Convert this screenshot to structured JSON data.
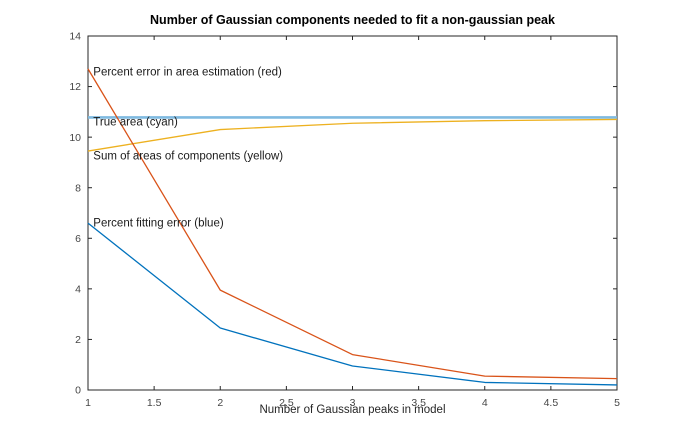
{
  "chart_data": {
    "type": "line",
    "title": "Number of Gaussian components needed to fit a non-gaussian peak",
    "xlabel": "Number of Gaussian peaks in model",
    "ylabel": "",
    "x": [
      1,
      2,
      3,
      4,
      5
    ],
    "series": [
      {
        "name": "true-area",
        "label": "True area (cyan)",
        "color": "#7FBAE0",
        "width": 2.6,
        "values": [
          10.78,
          10.78,
          10.78,
          10.78,
          10.78
        ]
      },
      {
        "name": "sum-of-areas",
        "label": "Sum of areas of components (yellow)",
        "color": "#EDB120",
        "width": 1.3,
        "values": [
          9.45,
          10.3,
          10.55,
          10.65,
          10.7
        ]
      },
      {
        "name": "percent-error-area",
        "label": "Percent error in area estimation (red)",
        "color": "#D95319",
        "width": 1.3,
        "values": [
          12.7,
          3.95,
          1.4,
          0.55,
          0.45
        ]
      },
      {
        "name": "percent-fitting-error",
        "label": "Percent fitting error (blue)",
        "color": "#0072BD",
        "width": 1.3,
        "values": [
          6.6,
          2.45,
          0.95,
          0.3,
          0.2
        ]
      }
    ],
    "annotations": [
      {
        "text": "Percent error in area estimation (red)",
        "x": 1.04,
        "y": 12.6
      },
      {
        "text": "True area (cyan)",
        "x": 1.04,
        "y": 10.62
      },
      {
        "text": "Sum of areas of components (yellow)",
        "x": 1.04,
        "y": 9.27
      },
      {
        "text": "Percent fitting error (blue)",
        "x": 1.04,
        "y": 6.62
      }
    ],
    "xlim": [
      1,
      5
    ],
    "ylim": [
      0,
      14
    ],
    "xticks": [
      1,
      1.5,
      2,
      2.5,
      3,
      3.5,
      4,
      4.5,
      5
    ],
    "yticks": [
      0,
      2,
      4,
      6,
      8,
      10,
      12,
      14
    ],
    "grid": false,
    "legend_position": "none",
    "axis_color": "#262626",
    "background": "#ffffff"
  }
}
